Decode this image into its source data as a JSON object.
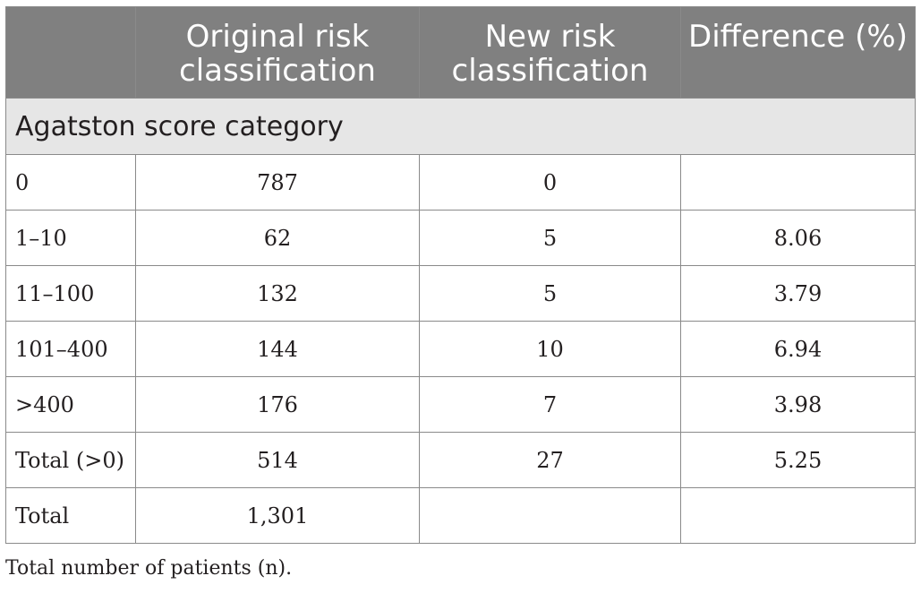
{
  "table": {
    "headers": [
      "",
      "Original risk classification",
      "New risk classification",
      "Difference (%)"
    ],
    "section_label": "Agatston score category",
    "rows": [
      {
        "category": "0",
        "original": "787",
        "new": "0",
        "difference": ""
      },
      {
        "category": "1–10",
        "original": "62",
        "new": "5",
        "difference": "8.06"
      },
      {
        "category": "11–100",
        "original": "132",
        "new": "5",
        "difference": "3.79"
      },
      {
        "category": "101–400",
        "original": "144",
        "new": "10",
        "difference": "6.94"
      },
      {
        "category": ">400",
        "original": "176",
        "new": "7",
        "difference": "3.98"
      },
      {
        "category": "Total (>0)",
        "original": "514",
        "new": "27",
        "difference": "5.25"
      },
      {
        "category": "Total",
        "original": "1,301",
        "new": "",
        "difference": ""
      }
    ]
  },
  "footnote": "Total number of patients (n)."
}
